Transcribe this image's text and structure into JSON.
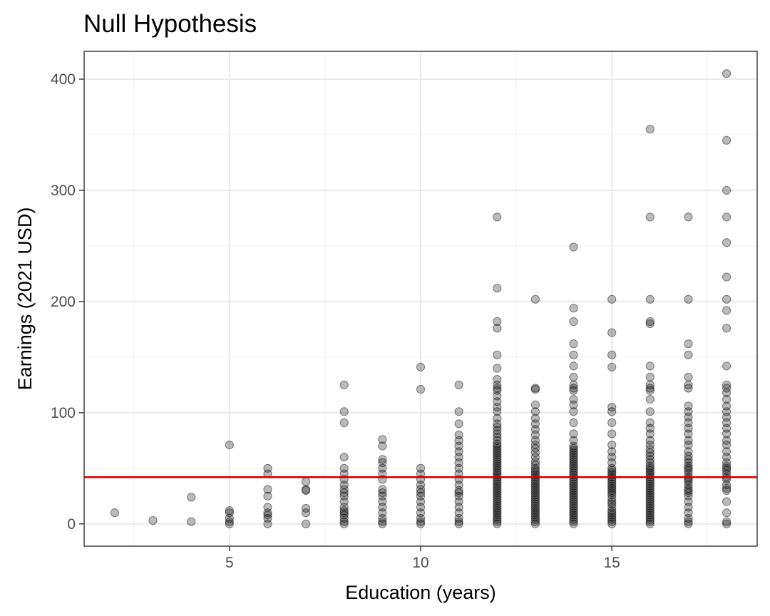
{
  "chart_data": {
    "type": "scatter",
    "title": "Null Hypothesis",
    "xlabel": "Education (years)",
    "ylabel": "Earnings (2021 USD)",
    "xlim": [
      1.2,
      18.8
    ],
    "ylim": [
      -20,
      425
    ],
    "x_ticks": [
      5,
      10,
      15
    ],
    "x_tick_labels": [
      "5",
      "10",
      "15"
    ],
    "y_ticks": [
      0,
      100,
      200,
      300,
      400
    ],
    "y_tick_labels": [
      "0",
      "100",
      "200",
      "300",
      "400"
    ],
    "grid": true,
    "legend": "none",
    "reference_line": {
      "orientation": "horizontal",
      "y": 42,
      "color": "#d40000"
    },
    "point_color": "#000000",
    "point_alpha": 0.27,
    "points": [
      [
        2,
        10
      ],
      [
        3,
        3
      ],
      [
        4,
        2
      ],
      [
        4,
        24
      ],
      [
        5,
        0
      ],
      [
        5,
        2
      ],
      [
        5,
        5
      ],
      [
        5,
        10
      ],
      [
        5,
        12
      ],
      [
        5,
        71
      ],
      [
        6,
        0
      ],
      [
        6,
        5
      ],
      [
        6,
        8
      ],
      [
        6,
        10
      ],
      [
        6,
        15
      ],
      [
        6,
        25
      ],
      [
        6,
        31
      ],
      [
        6,
        45
      ],
      [
        6,
        50
      ],
      [
        7,
        0
      ],
      [
        7,
        10
      ],
      [
        7,
        14
      ],
      [
        7,
        30
      ],
      [
        7,
        31
      ],
      [
        7,
        38
      ],
      [
        8,
        0
      ],
      [
        8,
        2
      ],
      [
        8,
        5
      ],
      [
        8,
        8
      ],
      [
        8,
        10
      ],
      [
        8,
        12
      ],
      [
        8,
        15
      ],
      [
        8,
        20
      ],
      [
        8,
        25
      ],
      [
        8,
        28
      ],
      [
        8,
        31
      ],
      [
        8,
        35
      ],
      [
        8,
        40
      ],
      [
        8,
        45
      ],
      [
        8,
        50
      ],
      [
        8,
        60
      ],
      [
        8,
        91
      ],
      [
        8,
        101
      ],
      [
        8,
        125
      ],
      [
        9,
        0
      ],
      [
        9,
        2
      ],
      [
        9,
        5
      ],
      [
        9,
        10
      ],
      [
        9,
        15
      ],
      [
        9,
        20
      ],
      [
        9,
        25
      ],
      [
        9,
        28
      ],
      [
        9,
        31
      ],
      [
        9,
        40
      ],
      [
        9,
        45
      ],
      [
        9,
        50
      ],
      [
        9,
        55
      ],
      [
        9,
        58
      ],
      [
        9,
        70
      ],
      [
        9,
        76
      ],
      [
        10,
        0
      ],
      [
        10,
        2
      ],
      [
        10,
        5
      ],
      [
        10,
        10
      ],
      [
        10,
        15
      ],
      [
        10,
        20
      ],
      [
        10,
        25
      ],
      [
        10,
        28
      ],
      [
        10,
        31
      ],
      [
        10,
        35
      ],
      [
        10,
        40
      ],
      [
        10,
        45
      ],
      [
        10,
        50
      ],
      [
        10,
        121
      ],
      [
        10,
        141
      ],
      [
        11,
        0
      ],
      [
        11,
        2
      ],
      [
        11,
        5
      ],
      [
        11,
        10
      ],
      [
        11,
        15
      ],
      [
        11,
        20
      ],
      [
        11,
        25
      ],
      [
        11,
        28
      ],
      [
        11,
        30
      ],
      [
        11,
        35
      ],
      [
        11,
        40
      ],
      [
        11,
        45
      ],
      [
        11,
        50
      ],
      [
        11,
        55
      ],
      [
        11,
        60
      ],
      [
        11,
        65
      ],
      [
        11,
        70
      ],
      [
        11,
        75
      ],
      [
        11,
        80
      ],
      [
        11,
        90
      ],
      [
        11,
        101
      ],
      [
        11,
        125
      ],
      [
        12,
        0
      ],
      [
        12,
        2
      ],
      [
        12,
        4
      ],
      [
        12,
        6
      ],
      [
        12,
        8
      ],
      [
        12,
        10
      ],
      [
        12,
        12
      ],
      [
        12,
        14
      ],
      [
        12,
        16
      ],
      [
        12,
        18
      ],
      [
        12,
        20
      ],
      [
        12,
        22
      ],
      [
        12,
        24
      ],
      [
        12,
        26
      ],
      [
        12,
        28
      ],
      [
        12,
        30
      ],
      [
        12,
        32
      ],
      [
        12,
        34
      ],
      [
        12,
        36
      ],
      [
        12,
        38
      ],
      [
        12,
        40
      ],
      [
        12,
        42
      ],
      [
        12,
        44
      ],
      [
        12,
        46
      ],
      [
        12,
        48
      ],
      [
        12,
        50
      ],
      [
        12,
        52
      ],
      [
        12,
        54
      ],
      [
        12,
        56
      ],
      [
        12,
        58
      ],
      [
        12,
        60
      ],
      [
        12,
        62
      ],
      [
        12,
        64
      ],
      [
        12,
        66
      ],
      [
        12,
        68
      ],
      [
        12,
        70
      ],
      [
        12,
        72
      ],
      [
        12,
        75
      ],
      [
        12,
        78
      ],
      [
        12,
        81
      ],
      [
        12,
        84
      ],
      [
        12,
        87
      ],
      [
        12,
        90
      ],
      [
        12,
        95
      ],
      [
        12,
        101
      ],
      [
        12,
        105
      ],
      [
        12,
        110
      ],
      [
        12,
        115
      ],
      [
        12,
        120
      ],
      [
        12,
        122
      ],
      [
        12,
        125
      ],
      [
        12,
        130
      ],
      [
        12,
        140
      ],
      [
        12,
        152
      ],
      [
        12,
        176
      ],
      [
        12,
        182
      ],
      [
        12,
        212
      ],
      [
        12,
        276
      ],
      [
        13,
        0
      ],
      [
        13,
        2
      ],
      [
        13,
        4
      ],
      [
        13,
        6
      ],
      [
        13,
        8
      ],
      [
        13,
        10
      ],
      [
        13,
        12
      ],
      [
        13,
        14
      ],
      [
        13,
        16
      ],
      [
        13,
        18
      ],
      [
        13,
        20
      ],
      [
        13,
        22
      ],
      [
        13,
        24
      ],
      [
        13,
        26
      ],
      [
        13,
        28
      ],
      [
        13,
        30
      ],
      [
        13,
        32
      ],
      [
        13,
        34
      ],
      [
        13,
        36
      ],
      [
        13,
        38
      ],
      [
        13,
        40
      ],
      [
        13,
        42
      ],
      [
        13,
        44
      ],
      [
        13,
        46
      ],
      [
        13,
        48
      ],
      [
        13,
        50
      ],
      [
        13,
        53
      ],
      [
        13,
        56
      ],
      [
        13,
        60
      ],
      [
        13,
        64
      ],
      [
        13,
        68
      ],
      [
        13,
        71
      ],
      [
        13,
        75
      ],
      [
        13,
        80
      ],
      [
        13,
        85
      ],
      [
        13,
        90
      ],
      [
        13,
        95
      ],
      [
        13,
        101
      ],
      [
        13,
        107
      ],
      [
        13,
        121
      ],
      [
        13,
        122
      ],
      [
        13,
        202
      ],
      [
        14,
        0
      ],
      [
        14,
        2
      ],
      [
        14,
        4
      ],
      [
        14,
        6
      ],
      [
        14,
        8
      ],
      [
        14,
        10
      ],
      [
        14,
        12
      ],
      [
        14,
        14
      ],
      [
        14,
        16
      ],
      [
        14,
        18
      ],
      [
        14,
        20
      ],
      [
        14,
        22
      ],
      [
        14,
        24
      ],
      [
        14,
        26
      ],
      [
        14,
        28
      ],
      [
        14,
        30
      ],
      [
        14,
        32
      ],
      [
        14,
        34
      ],
      [
        14,
        36
      ],
      [
        14,
        38
      ],
      [
        14,
        40
      ],
      [
        14,
        42
      ],
      [
        14,
        44
      ],
      [
        14,
        46
      ],
      [
        14,
        48
      ],
      [
        14,
        50
      ],
      [
        14,
        52
      ],
      [
        14,
        54
      ],
      [
        14,
        56
      ],
      [
        14,
        58
      ],
      [
        14,
        60
      ],
      [
        14,
        62
      ],
      [
        14,
        64
      ],
      [
        14,
        66
      ],
      [
        14,
        68
      ],
      [
        14,
        70
      ],
      [
        14,
        75
      ],
      [
        14,
        81
      ],
      [
        14,
        91
      ],
      [
        14,
        101
      ],
      [
        14,
        107
      ],
      [
        14,
        112
      ],
      [
        14,
        120
      ],
      [
        14,
        122
      ],
      [
        14,
        125
      ],
      [
        14,
        132
      ],
      [
        14,
        142
      ],
      [
        14,
        152
      ],
      [
        14,
        162
      ],
      [
        14,
        182
      ],
      [
        14,
        194
      ],
      [
        14,
        249
      ],
      [
        15,
        0
      ],
      [
        15,
        2
      ],
      [
        15,
        4
      ],
      [
        15,
        6
      ],
      [
        15,
        8
      ],
      [
        15,
        10
      ],
      [
        15,
        12
      ],
      [
        15,
        15
      ],
      [
        15,
        18
      ],
      [
        15,
        20
      ],
      [
        15,
        23
      ],
      [
        15,
        26
      ],
      [
        15,
        28
      ],
      [
        15,
        30
      ],
      [
        15,
        32
      ],
      [
        15,
        34
      ],
      [
        15,
        36
      ],
      [
        15,
        38
      ],
      [
        15,
        40
      ],
      [
        15,
        42
      ],
      [
        15,
        44
      ],
      [
        15,
        46
      ],
      [
        15,
        48
      ],
      [
        15,
        50
      ],
      [
        15,
        55
      ],
      [
        15,
        60
      ],
      [
        15,
        65
      ],
      [
        15,
        71
      ],
      [
        15,
        81
      ],
      [
        15,
        91
      ],
      [
        15,
        101
      ],
      [
        15,
        105
      ],
      [
        15,
        141
      ],
      [
        15,
        152
      ],
      [
        15,
        172
      ],
      [
        15,
        202
      ],
      [
        16,
        0
      ],
      [
        16,
        2
      ],
      [
        16,
        4
      ],
      [
        16,
        6
      ],
      [
        16,
        8
      ],
      [
        16,
        10
      ],
      [
        16,
        12
      ],
      [
        16,
        14
      ],
      [
        16,
        16
      ],
      [
        16,
        18
      ],
      [
        16,
        20
      ],
      [
        16,
        22
      ],
      [
        16,
        24
      ],
      [
        16,
        26
      ],
      [
        16,
        28
      ],
      [
        16,
        30
      ],
      [
        16,
        32
      ],
      [
        16,
        34
      ],
      [
        16,
        36
      ],
      [
        16,
        38
      ],
      [
        16,
        40
      ],
      [
        16,
        42
      ],
      [
        16,
        44
      ],
      [
        16,
        46
      ],
      [
        16,
        48
      ],
      [
        16,
        50
      ],
      [
        16,
        52
      ],
      [
        16,
        55
      ],
      [
        16,
        58
      ],
      [
        16,
        61
      ],
      [
        16,
        64
      ],
      [
        16,
        67
      ],
      [
        16,
        71
      ],
      [
        16,
        75
      ],
      [
        16,
        81
      ],
      [
        16,
        86
      ],
      [
        16,
        91
      ],
      [
        16,
        101
      ],
      [
        16,
        112
      ],
      [
        16,
        120
      ],
      [
        16,
        122
      ],
      [
        16,
        125
      ],
      [
        16,
        132
      ],
      [
        16,
        142
      ],
      [
        16,
        180
      ],
      [
        16,
        182
      ],
      [
        16,
        202
      ],
      [
        16,
        276
      ],
      [
        16,
        355
      ],
      [
        17,
        0
      ],
      [
        17,
        2
      ],
      [
        17,
        5
      ],
      [
        17,
        10
      ],
      [
        17,
        15
      ],
      [
        17,
        20
      ],
      [
        17,
        25
      ],
      [
        17,
        28
      ],
      [
        17,
        30
      ],
      [
        17,
        32
      ],
      [
        17,
        35
      ],
      [
        17,
        38
      ],
      [
        17,
        40
      ],
      [
        17,
        42
      ],
      [
        17,
        45
      ],
      [
        17,
        48
      ],
      [
        17,
        50
      ],
      [
        17,
        52
      ],
      [
        17,
        55
      ],
      [
        17,
        58
      ],
      [
        17,
        61
      ],
      [
        17,
        65
      ],
      [
        17,
        71
      ],
      [
        17,
        75
      ],
      [
        17,
        81
      ],
      [
        17,
        86
      ],
      [
        17,
        91
      ],
      [
        17,
        96
      ],
      [
        17,
        101
      ],
      [
        17,
        106
      ],
      [
        17,
        122
      ],
      [
        17,
        125
      ],
      [
        17,
        132
      ],
      [
        17,
        152
      ],
      [
        17,
        162
      ],
      [
        17,
        202
      ],
      [
        17,
        276
      ],
      [
        18,
        0
      ],
      [
        18,
        2
      ],
      [
        18,
        10
      ],
      [
        18,
        20
      ],
      [
        18,
        30
      ],
      [
        18,
        32
      ],
      [
        18,
        35
      ],
      [
        18,
        40
      ],
      [
        18,
        42
      ],
      [
        18,
        45
      ],
      [
        18,
        48
      ],
      [
        18,
        50
      ],
      [
        18,
        52
      ],
      [
        18,
        55
      ],
      [
        18,
        60
      ],
      [
        18,
        65
      ],
      [
        18,
        71
      ],
      [
        18,
        75
      ],
      [
        18,
        81
      ],
      [
        18,
        86
      ],
      [
        18,
        91
      ],
      [
        18,
        96
      ],
      [
        18,
        101
      ],
      [
        18,
        106
      ],
      [
        18,
        112
      ],
      [
        18,
        118
      ],
      [
        18,
        122
      ],
      [
        18,
        125
      ],
      [
        18,
        142
      ],
      [
        18,
        176
      ],
      [
        18,
        192
      ],
      [
        18,
        202
      ],
      [
        18,
        222
      ],
      [
        18,
        253
      ],
      [
        18,
        276
      ],
      [
        18,
        300
      ],
      [
        18,
        345
      ],
      [
        18,
        405
      ]
    ]
  }
}
